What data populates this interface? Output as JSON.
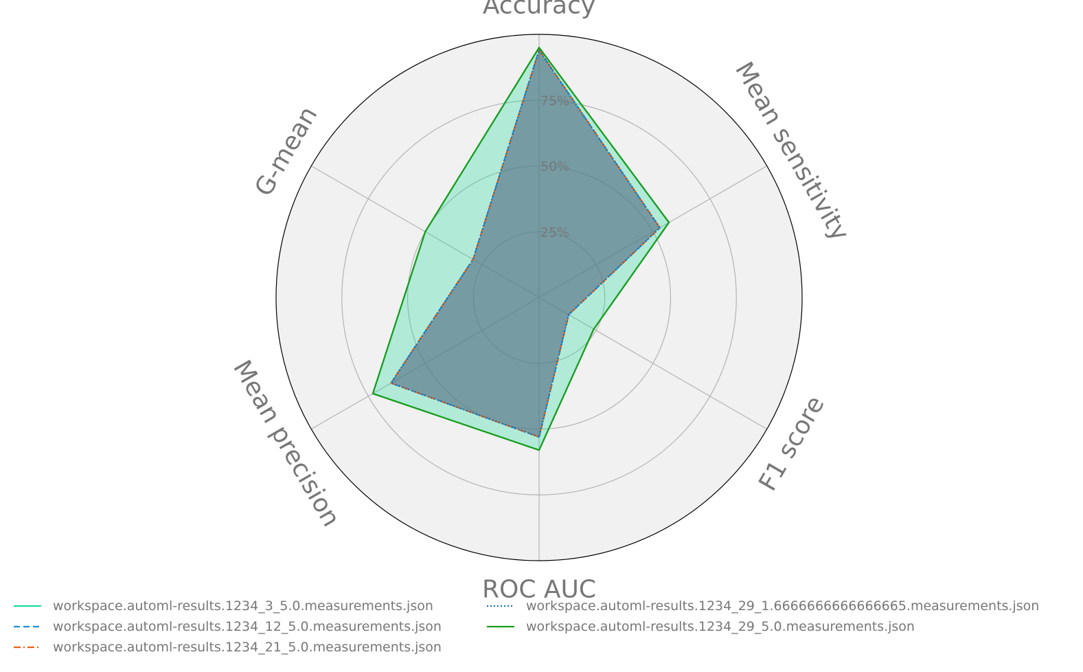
{
  "chart_data": {
    "type": "radar",
    "axes": [
      "Accuracy",
      "Mean sensitivity",
      "F1 score",
      "ROC AUC",
      "Mean precision",
      "G-mean"
    ],
    "rlim": [
      0,
      100
    ],
    "r_ticks": [
      25,
      50,
      75
    ],
    "r_tick_labels": [
      "25%",
      "50%",
      "75%"
    ],
    "grid": true,
    "legend_position": "bottom",
    "series": [
      {
        "name": "workspace.automl-results.1234_3_5.0.measurements.json",
        "values": [
          95,
          57,
          24,
          58,
          73,
          50
        ],
        "color": "#1fdb9a",
        "dash": "solid",
        "fill": true
      },
      {
        "name": "workspace.automl-results.1234_12_5.0.measurements.json",
        "values": [
          94,
          53,
          13,
          53,
          65,
          29
        ],
        "color": "#1f8fd8",
        "dash": "dashed",
        "fill": true
      },
      {
        "name": "workspace.automl-results.1234_21_5.0.measurements.json",
        "values": [
          94,
          53,
          13,
          53,
          65,
          29
        ],
        "color": "#e8621a",
        "dash": "dashdot",
        "fill": true
      },
      {
        "name": "workspace.automl-results.1234_29_1.6666666666666665.measurements.json",
        "values": [
          94,
          53,
          13,
          53,
          65,
          29
        ],
        "color": "#1570b0",
        "dash": "dotted",
        "fill": true
      },
      {
        "name": "workspace.automl-results.1234_29_5.0.measurements.json",
        "values": [
          95,
          57,
          24,
          58,
          73,
          50
        ],
        "color": "#1a9a1a",
        "dash": "solid",
        "fill": false
      }
    ]
  }
}
